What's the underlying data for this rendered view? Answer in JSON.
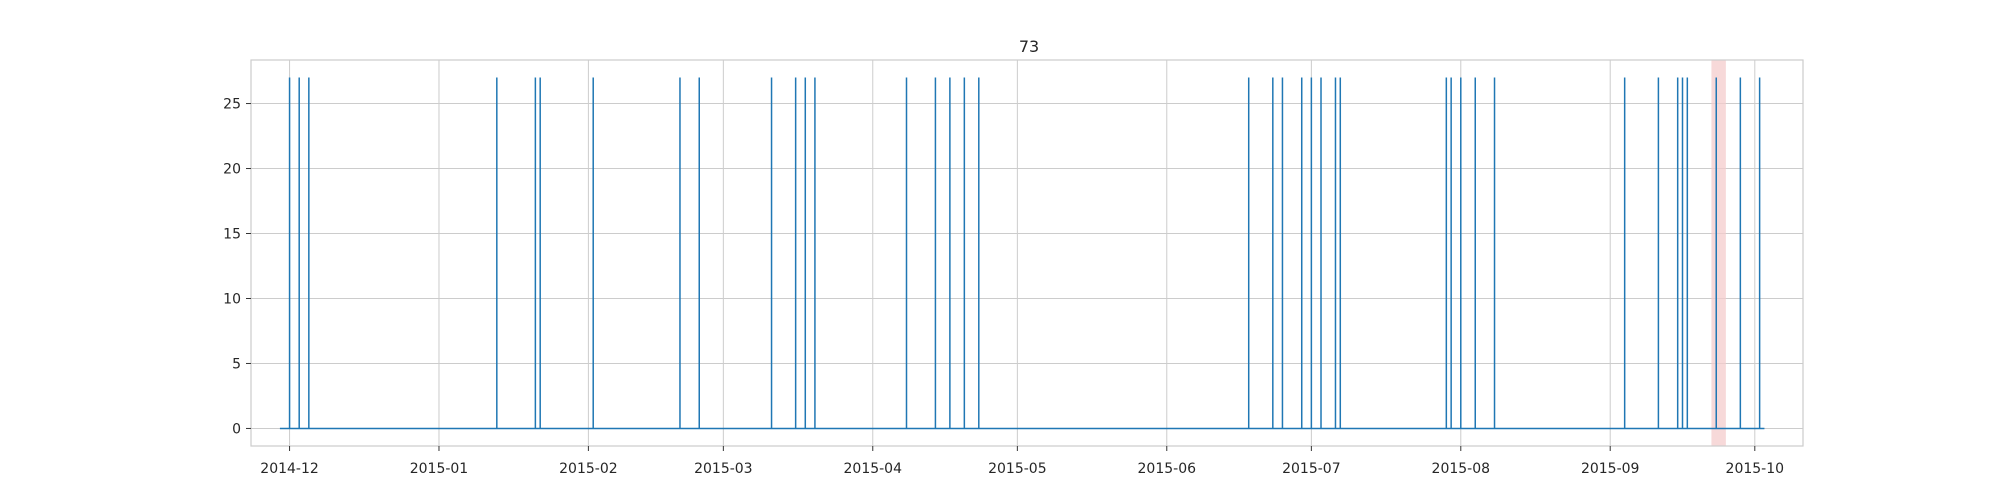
{
  "chart_data": {
    "type": "line",
    "title": "73",
    "xlabel": "",
    "ylabel": "",
    "xlim": [
      "2014-11-23",
      "2015-10-11"
    ],
    "ylim": [
      -1.35,
      28.35
    ],
    "grid": true,
    "x_ticks": [
      "2014-12-01",
      "2015-01-01",
      "2015-02-01",
      "2015-03-01",
      "2015-04-01",
      "2015-05-01",
      "2015-06-01",
      "2015-07-01",
      "2015-08-01",
      "2015-09-01",
      "2015-10-01"
    ],
    "x_tick_labels": [
      "2014-12",
      "2015-01",
      "2015-02",
      "2015-03",
      "2015-04",
      "2015-05",
      "2015-06",
      "2015-07",
      "2015-08",
      "2015-09",
      "2015-10"
    ],
    "y_ticks": [
      0,
      5,
      10,
      15,
      20,
      25
    ],
    "y_tick_labels": [
      "0",
      "5",
      "10",
      "15",
      "20",
      "25"
    ],
    "series": [
      {
        "name": "73",
        "color": "#1f77b4",
        "baseline": 0,
        "peak_value": 27,
        "start": "2014-11-29",
        "end": "2015-10-03",
        "spike_dates": [
          "2014-12-01",
          "2014-12-03",
          "2014-12-05",
          "2015-01-13",
          "2015-01-21",
          "2015-01-22",
          "2015-02-02",
          "2015-02-20",
          "2015-02-24",
          "2015-03-11",
          "2015-03-16",
          "2015-03-18",
          "2015-03-20",
          "2015-04-08",
          "2015-04-14",
          "2015-04-17",
          "2015-04-20",
          "2015-04-23",
          "2015-06-18",
          "2015-06-23",
          "2015-06-25",
          "2015-06-29",
          "2015-07-01",
          "2015-07-03",
          "2015-07-06",
          "2015-07-07",
          "2015-07-29",
          "2015-07-30",
          "2015-08-01",
          "2015-08-04",
          "2015-08-08",
          "2015-09-04",
          "2015-09-11",
          "2015-09-15",
          "2015-09-16",
          "2015-09-17",
          "2015-09-23",
          "2015-09-28",
          "2015-10-02"
        ]
      }
    ],
    "highlight_span": {
      "start": "2015-09-22",
      "end": "2015-09-25",
      "color": "#f4cccc"
    }
  }
}
